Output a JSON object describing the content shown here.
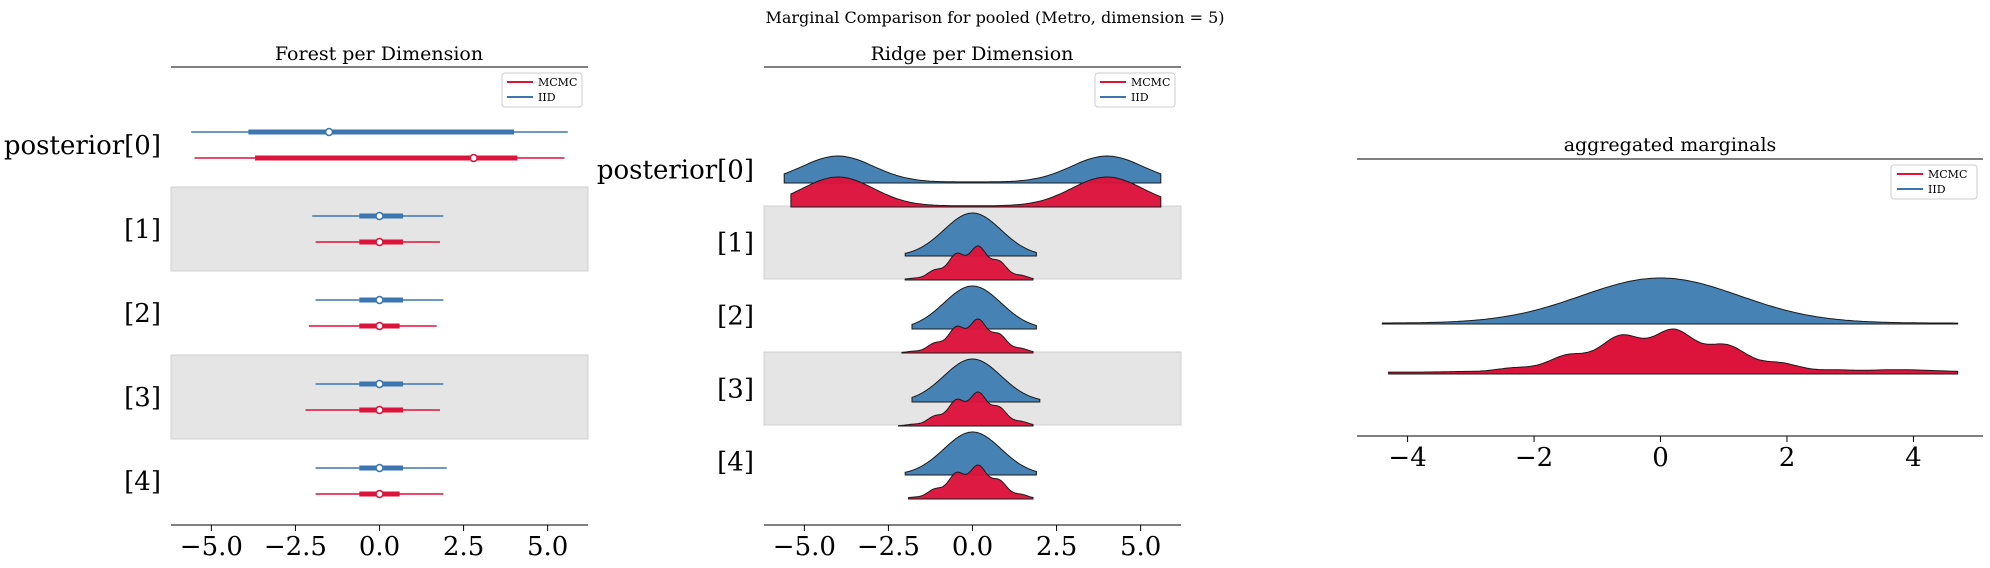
{
  "figure": {
    "title": "Marginal Comparison for pooled (Metro, dimension = 5)"
  },
  "colors": {
    "mcmc": "#DC143C",
    "iid": "#3C76B0",
    "iid_fill": "#4682B4",
    "band": "#E5E5E5"
  },
  "chart_data": [
    {
      "type": "forest",
      "title": "Forest per Dimension",
      "row_labels": [
        "posterior[0]",
        "[1]",
        "[2]",
        "[3]",
        "[4]"
      ],
      "xlim": [
        -6.2,
        6.2
      ],
      "xticks": [
        -5.0,
        -2.5,
        0.0,
        2.5,
        5.0
      ],
      "tick_labels": [
        "−5.0",
        "−2.5",
        "0.0",
        "2.5",
        "5.0"
      ],
      "legend": [
        "MCMC",
        "IID"
      ],
      "series": [
        {
          "name": "IID",
          "rows": [
            {
              "hdi94": [
                -5.6,
                5.6
              ],
              "iqr": [
                -3.9,
                4.0
              ],
              "point": -1.5
            },
            {
              "hdi94": [
                -2.0,
                1.9
              ],
              "iqr": [
                -0.6,
                0.7
              ],
              "point": 0.0
            },
            {
              "hdi94": [
                -1.9,
                1.9
              ],
              "iqr": [
                -0.6,
                0.7
              ],
              "point": 0.0
            },
            {
              "hdi94": [
                -1.9,
                1.9
              ],
              "iqr": [
                -0.6,
                0.7
              ],
              "point": 0.0
            },
            {
              "hdi94": [
                -1.9,
                2.0
              ],
              "iqr": [
                -0.6,
                0.7
              ],
              "point": 0.0
            }
          ]
        },
        {
          "name": "MCMC",
          "rows": [
            {
              "hdi94": [
                -5.5,
                5.5
              ],
              "iqr": [
                -3.7,
                4.1
              ],
              "point": 2.8
            },
            {
              "hdi94": [
                -1.9,
                1.8
              ],
              "iqr": [
                -0.6,
                0.7
              ],
              "point": 0.0
            },
            {
              "hdi94": [
                -2.1,
                1.7
              ],
              "iqr": [
                -0.6,
                0.6
              ],
              "point": 0.0
            },
            {
              "hdi94": [
                -2.2,
                1.8
              ],
              "iqr": [
                -0.6,
                0.7
              ],
              "point": 0.0
            },
            {
              "hdi94": [
                -1.9,
                1.9
              ],
              "iqr": [
                -0.6,
                0.6
              ],
              "point": 0.0
            }
          ]
        }
      ]
    },
    {
      "type": "ridgeline",
      "title": "Ridge per Dimension",
      "row_labels": [
        "posterior[0]",
        "[1]",
        "[2]",
        "[3]",
        "[4]"
      ],
      "xlim": [
        -6.2,
        6.2
      ],
      "xticks": [
        -5.0,
        -2.5,
        0.0,
        2.5,
        5.0
      ],
      "tick_labels": [
        "−5.0",
        "−2.5",
        "0.0",
        "2.5",
        "5.0"
      ],
      "legend": [
        "MCMC",
        "IID"
      ],
      "series": [
        {
          "name": "IID",
          "rows": [
            {
              "type": "bimodal",
              "range": [
                -5.6,
                5.6
              ]
            },
            {
              "type": "normal",
              "range": [
                -2.0,
                1.9
              ]
            },
            {
              "type": "normal",
              "range": [
                -1.8,
                1.9
              ]
            },
            {
              "type": "normal",
              "range": [
                -1.8,
                2.0
              ]
            },
            {
              "type": "normal",
              "range": [
                -2.0,
                1.9
              ]
            }
          ]
        },
        {
          "name": "MCMC",
          "rows": [
            {
              "type": "bimodal",
              "range": [
                -5.4,
                5.6
              ]
            },
            {
              "type": "bumpy",
              "range": [
                -2.0,
                1.8
              ]
            },
            {
              "type": "bumpy",
              "range": [
                -2.1,
                1.8
              ]
            },
            {
              "type": "bumpy",
              "range": [
                -2.2,
                1.8
              ]
            },
            {
              "type": "bumpy",
              "range": [
                -1.9,
                1.8
              ]
            }
          ]
        }
      ]
    },
    {
      "type": "ridgeline",
      "title": "aggregated marginals",
      "xlim": [
        -4.8,
        5.1
      ],
      "xticks": [
        -4,
        -2,
        0,
        2,
        4
      ],
      "tick_labels": [
        "−4",
        "−2",
        "0",
        "2",
        "4"
      ],
      "legend": [
        "MCMC",
        "IID"
      ],
      "series": [
        {
          "name": "IID",
          "type": "normal",
          "range": [
            -4.4,
            4.7
          ]
        },
        {
          "name": "MCMC",
          "type": "bumpy",
          "range": [
            -4.3,
            4.7
          ]
        }
      ]
    }
  ]
}
